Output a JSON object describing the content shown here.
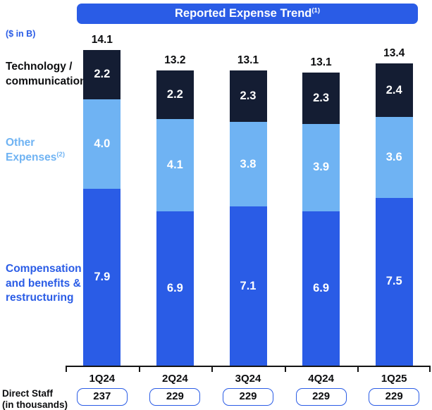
{
  "header": {
    "title": "Reported Expense Trend",
    "title_sup": "(1)",
    "units": "($ in B)"
  },
  "legend": {
    "technology": {
      "line1": "Technology /",
      "line2": "communication"
    },
    "other": {
      "line1": "Other",
      "line2": "Expenses",
      "sup": "(2)"
    },
    "compensation": {
      "line1": "Compensation",
      "line2": "and benefits &",
      "line3": "restructuring"
    }
  },
  "footer": {
    "line1": "Direct Staff",
    "line2": "(in thousands)"
  },
  "colors": {
    "royal_blue": "#2a5ce6",
    "light_blue": "#6fb3f3",
    "navy": "#141d33",
    "ink": "#0c0d0f"
  },
  "chart_data": {
    "type": "bar",
    "stacked": true,
    "title": "Reported Expense Trend (1)",
    "ylabel": "($ in B)",
    "grid": false,
    "legend_position": "left",
    "categories": [
      "1Q24",
      "2Q24",
      "3Q24",
      "4Q24",
      "1Q25"
    ],
    "series": [
      {
        "name": "Compensation and benefits & restructuring",
        "color_key": "royal_blue",
        "values": [
          7.9,
          6.9,
          7.1,
          6.9,
          7.5
        ]
      },
      {
        "name": "Other Expenses (2)",
        "color_key": "light_blue",
        "values": [
          4.0,
          4.1,
          3.8,
          3.9,
          3.6
        ]
      },
      {
        "name": "Technology / communication",
        "color_key": "navy",
        "values": [
          2.2,
          2.2,
          2.3,
          2.3,
          2.4
        ]
      }
    ],
    "totals": [
      14.1,
      13.2,
      13.1,
      13.1,
      13.4
    ],
    "direct_staff": [
      237,
      229,
      229,
      229,
      229
    ]
  }
}
